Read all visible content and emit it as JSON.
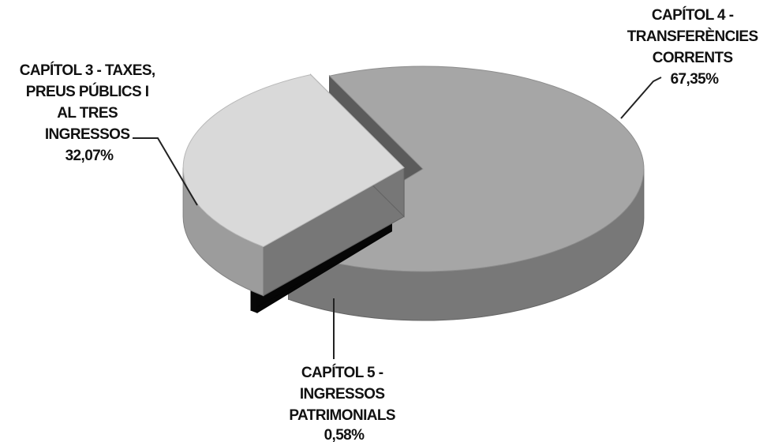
{
  "chart_data": {
    "type": "pie",
    "style": "3d-exploded",
    "title": "",
    "legend": "none",
    "slices": [
      {
        "label_lines": [
          "CAPÍTOL 4 -",
          "TRANSFERÈNCIES",
          "CORRENTS"
        ],
        "value": 67.35,
        "value_label": "67,35%",
        "color": "#a6a6a6"
      },
      {
        "label_lines": [
          "CAPÍTOL 5 -",
          "INGRESSOS",
          "PATRIMONIALS"
        ],
        "value": 0.58,
        "value_label": "0,58%",
        "color": "#0a0a0a"
      },
      {
        "label_lines": [
          "CAPÍTOL 3 - TAXES,",
          "PREUS  PÚBLICS I",
          "AL TRES",
          "INGRESSOS"
        ],
        "value": 32.07,
        "value_label": "32,07%",
        "color": "#d9d9d9"
      }
    ]
  }
}
